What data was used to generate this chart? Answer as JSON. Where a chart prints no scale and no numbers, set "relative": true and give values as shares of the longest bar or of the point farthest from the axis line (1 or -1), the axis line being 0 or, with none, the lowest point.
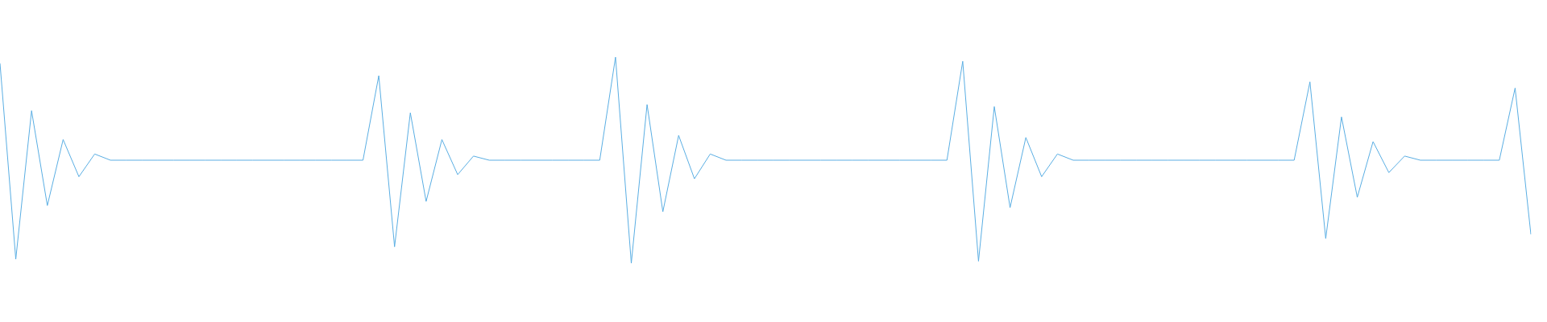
{
  "chart_data": {
    "type": "line",
    "relative": true,
    "categories": [
      null,
      null,
      null,
      null,
      null,
      null,
      null,
      null,
      null,
      null,
      null,
      null,
      null,
      null,
      null,
      null,
      null,
      null,
      null,
      null,
      null,
      null,
      null,
      null,
      null,
      null,
      null,
      null,
      null,
      null,
      null,
      null,
      null,
      null,
      null,
      null,
      null,
      null,
      null,
      null,
      null,
      null,
      null,
      null,
      null,
      null,
      null,
      null,
      null,
      null,
      null,
      null,
      null,
      null,
      null,
      null,
      null,
      null,
      null,
      null,
      null,
      null,
      null,
      null,
      null,
      null,
      null,
      null,
      null,
      null,
      null,
      null,
      null,
      null,
      null,
      null,
      null,
      null,
      null,
      null,
      null,
      null,
      null,
      null,
      null,
      null,
      null,
      null,
      null,
      null,
      null,
      null,
      null,
      null,
      null,
      null,
      null,
      null
    ],
    "series": [
      {
        "color": "#5aaee3",
        "values": [
          0.97,
          0.02,
          0.74,
          0.28,
          0.6,
          0.42,
          0.53,
          0.5,
          0.5,
          0.5,
          0.5,
          0.5,
          0.5,
          0.5,
          0.5,
          0.5,
          0.5,
          0.5,
          0.5,
          0.5,
          0.5,
          0.5,
          0.5,
          0.5,
          0.91,
          0.08,
          0.73,
          0.3,
          0.6,
          0.43,
          0.52,
          0.5,
          0.5,
          0.5,
          0.5,
          0.5,
          0.5,
          0.5,
          0.5,
          1,
          0,
          0.77,
          0.25,
          0.62,
          0.41,
          0.53,
          0.5,
          0.5,
          0.5,
          0.5,
          0.5,
          0.5,
          0.5,
          0.5,
          0.5,
          0.5,
          0.5,
          0.5,
          0.5,
          0.5,
          0.5,
          0.98,
          0.01,
          0.76,
          0.27,
          0.61,
          0.42,
          0.53,
          0.5,
          0.5,
          0.5,
          0.5,
          0.5,
          0.5,
          0.5,
          0.5,
          0.5,
          0.5,
          0.5,
          0.5,
          0.5,
          0.5,
          0.5,
          0.88,
          0.12,
          0.71,
          0.32,
          0.59,
          0.44,
          0.52,
          0.5,
          0.5,
          0.5,
          0.5,
          0.5,
          0.5,
          0.85,
          0.14
        ]
      }
    ]
  }
}
